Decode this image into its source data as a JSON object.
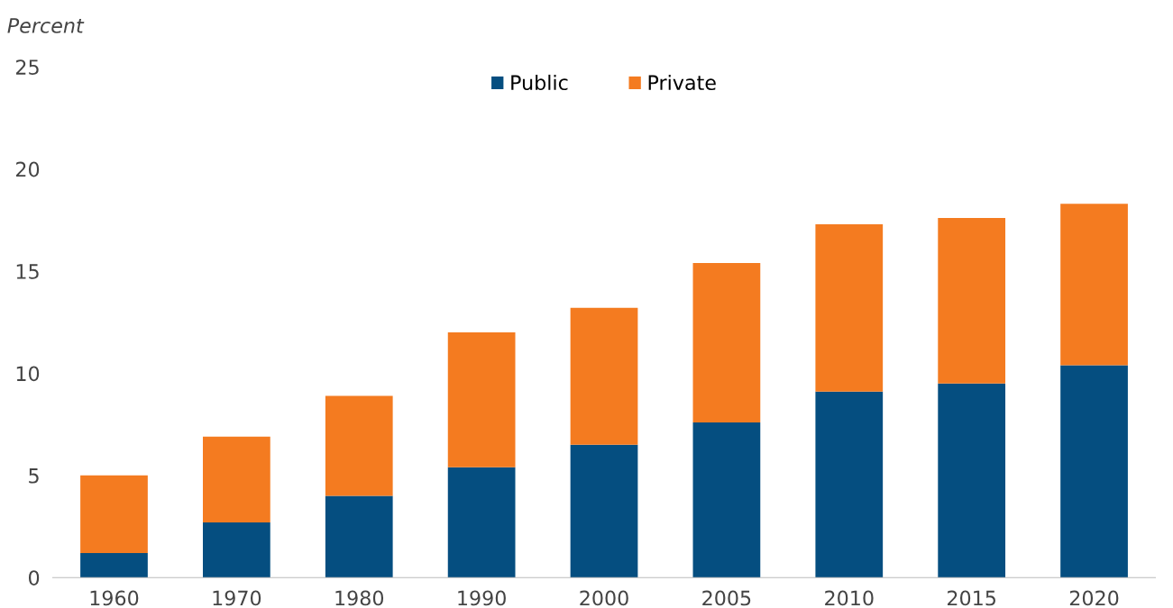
{
  "chart_data": {
    "type": "bar",
    "stacked": true,
    "ylabel": "Percent",
    "categories": [
      "1960",
      "1970",
      "1980",
      "1990",
      "2000",
      "2005",
      "2010",
      "2015",
      "2020"
    ],
    "series": [
      {
        "name": "Public",
        "color": "#054e80",
        "values": [
          1.2,
          2.7,
          4.0,
          5.4,
          6.5,
          7.6,
          9.1,
          9.5,
          10.4
        ]
      },
      {
        "name": "Private",
        "color": "#f47b20",
        "values": [
          3.8,
          4.2,
          4.9,
          6.6,
          6.7,
          7.8,
          8.2,
          8.1,
          7.9
        ]
      }
    ],
    "ylim": [
      0,
      25
    ],
    "yticks": [
      0,
      5,
      10,
      15,
      20,
      25
    ],
    "grid": false,
    "legend": "top"
  }
}
